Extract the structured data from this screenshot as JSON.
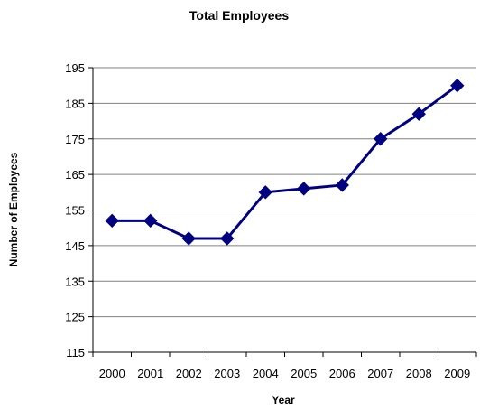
{
  "chart_data": {
    "type": "line",
    "title": "Total Employees",
    "xlabel": "Year",
    "ylabel": "Number of Employees",
    "categories": [
      "2000",
      "2001",
      "2002",
      "2003",
      "2004",
      "2005",
      "2006",
      "2007",
      "2008",
      "2009"
    ],
    "series": [
      {
        "values": [
          152,
          152,
          147,
          147,
          160,
          161,
          162,
          175,
          182,
          190
        ]
      }
    ],
    "ylim": [
      115,
      195
    ],
    "yticks": [
      115,
      125,
      135,
      145,
      155,
      165,
      175,
      185,
      195
    ],
    "grid": true,
    "legend": "none",
    "colors": {
      "line": "#000080",
      "grid": "#808080",
      "axis": "#000000"
    }
  }
}
